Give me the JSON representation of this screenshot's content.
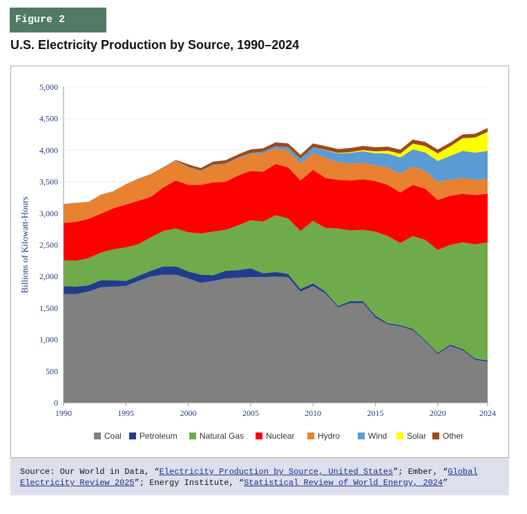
{
  "figure_label": "Figure 2",
  "title": "U.S. Electricity Production by Source, 1990–2024",
  "source": {
    "p1": "Source: Our World in Data, “",
    "l1": "Electricity Production by Source, United States",
    "p2": "”; Ember, “",
    "l2": "Global Electricity Review 2025",
    "p3": "”; Energy Institute, “",
    "l3": "Statistical Review of World Energy, 2024",
    "p4": "”"
  },
  "chart_data": {
    "type": "area",
    "stacked": true,
    "title": "U.S. Electricity Production by Source, 1990–2024",
    "xlabel": "",
    "ylabel": "Billions of Kilowatt-Hours",
    "ylim": [
      0,
      5000
    ],
    "xlim": [
      1990,
      2024
    ],
    "yticks": [
      "0",
      "500",
      "1,000",
      "1,500",
      "2,000",
      "2,500",
      "3,000",
      "3,500",
      "4,000",
      "4,500",
      "5,000"
    ],
    "xticks": [
      "1990",
      "1995",
      "2000",
      "2005",
      "2010",
      "2015",
      "2020",
      "2024"
    ],
    "grid": true,
    "legend": "bottom",
    "x": [
      1990,
      1991,
      1992,
      1993,
      1994,
      1995,
      1996,
      1997,
      1998,
      1999,
      2000,
      2001,
      2002,
      2003,
      2004,
      2005,
      2006,
      2007,
      2008,
      2009,
      2010,
      2011,
      2012,
      2013,
      2014,
      2015,
      2016,
      2017,
      2018,
      2019,
      2020,
      2021,
      2022,
      2023,
      2024
    ],
    "series": [
      {
        "name": "Coal",
        "color": "#808080",
        "values": [
          1719,
          1720,
          1760,
          1830,
          1840,
          1850,
          1930,
          2000,
          2030,
          2030,
          1970,
          1900,
          1930,
          1970,
          1980,
          1990,
          1990,
          2000,
          1990,
          1760,
          1850,
          1730,
          1510,
          1580,
          1580,
          1350,
          1240,
          1210,
          1150,
          970,
          770,
          900,
          830,
          680,
          650
        ]
      },
      {
        "name": "Petroleum",
        "color": "#203c8c",
        "values": [
          127,
          120,
          100,
          110,
          100,
          80,
          80,
          90,
          130,
          130,
          110,
          130,
          90,
          120,
          120,
          140,
          60,
          70,
          50,
          40,
          40,
          30,
          20,
          30,
          30,
          30,
          20,
          20,
          20,
          20,
          20,
          20,
          20,
          20,
          20
        ]
      },
      {
        "name": "Natural Gas",
        "color": "#6fab4a",
        "values": [
          410,
          410,
          430,
          440,
          490,
          530,
          500,
          530,
          560,
          600,
          620,
          650,
          690,
          650,
          710,
          760,
          820,
          900,
          880,
          920,
          990,
          1010,
          1230,
          1120,
          1130,
          1330,
          1380,
          1300,
          1470,
          1590,
          1630,
          1580,
          1690,
          1810,
          1870
        ]
      },
      {
        "name": "Nuclear",
        "color": "#ff0000",
        "values": [
          590,
          615,
          620,
          615,
          650,
          680,
          690,
          640,
          690,
          760,
          750,
          770,
          780,
          760,
          790,
          780,
          790,
          810,
          810,
          800,
          810,
          790,
          770,
          790,
          800,
          800,
          810,
          800,
          810,
          810,
          790,
          780,
          770,
          780,
          770
        ]
      },
      {
        "name": "Hydro",
        "color": "#e88230",
        "values": [
          300,
          300,
          270,
          300,
          270,
          320,
          350,
          360,
          320,
          310,
          280,
          220,
          270,
          280,
          270,
          270,
          290,
          250,
          260,
          270,
          260,
          320,
          280,
          270,
          260,
          250,
          270,
          300,
          290,
          280,
          290,
          250,
          250,
          240,
          240
        ]
      },
      {
        "name": "Wind",
        "color": "#5b9bd5",
        "values": [
          3,
          3,
          3,
          3,
          3,
          3,
          3,
          3,
          3,
          5,
          6,
          7,
          10,
          11,
          14,
          18,
          26,
          34,
          55,
          74,
          95,
          120,
          140,
          168,
          182,
          191,
          227,
          254,
          273,
          295,
          330,
          380,
          430,
          430,
          440
        ]
      },
      {
        "name": "Solar",
        "color": "#ffff00",
        "values": [
          0,
          0,
          0,
          0,
          0,
          0,
          0,
          0,
          0,
          0,
          0,
          0,
          0,
          0,
          0,
          0,
          0,
          1,
          2,
          2,
          2,
          4,
          8,
          12,
          20,
          30,
          45,
          60,
          90,
          100,
          120,
          150,
          200,
          240,
          300
        ]
      },
      {
        "name": "Other",
        "color": "#9c4a1a",
        "values": [
          0,
          0,
          0,
          0,
          0,
          0,
          0,
          0,
          0,
          10,
          40,
          40,
          50,
          50,
          50,
          55,
          55,
          60,
          60,
          60,
          60,
          60,
          60,
          65,
          65,
          65,
          65,
          65,
          65,
          65,
          60,
          60,
          60,
          60,
          60
        ]
      }
    ]
  }
}
